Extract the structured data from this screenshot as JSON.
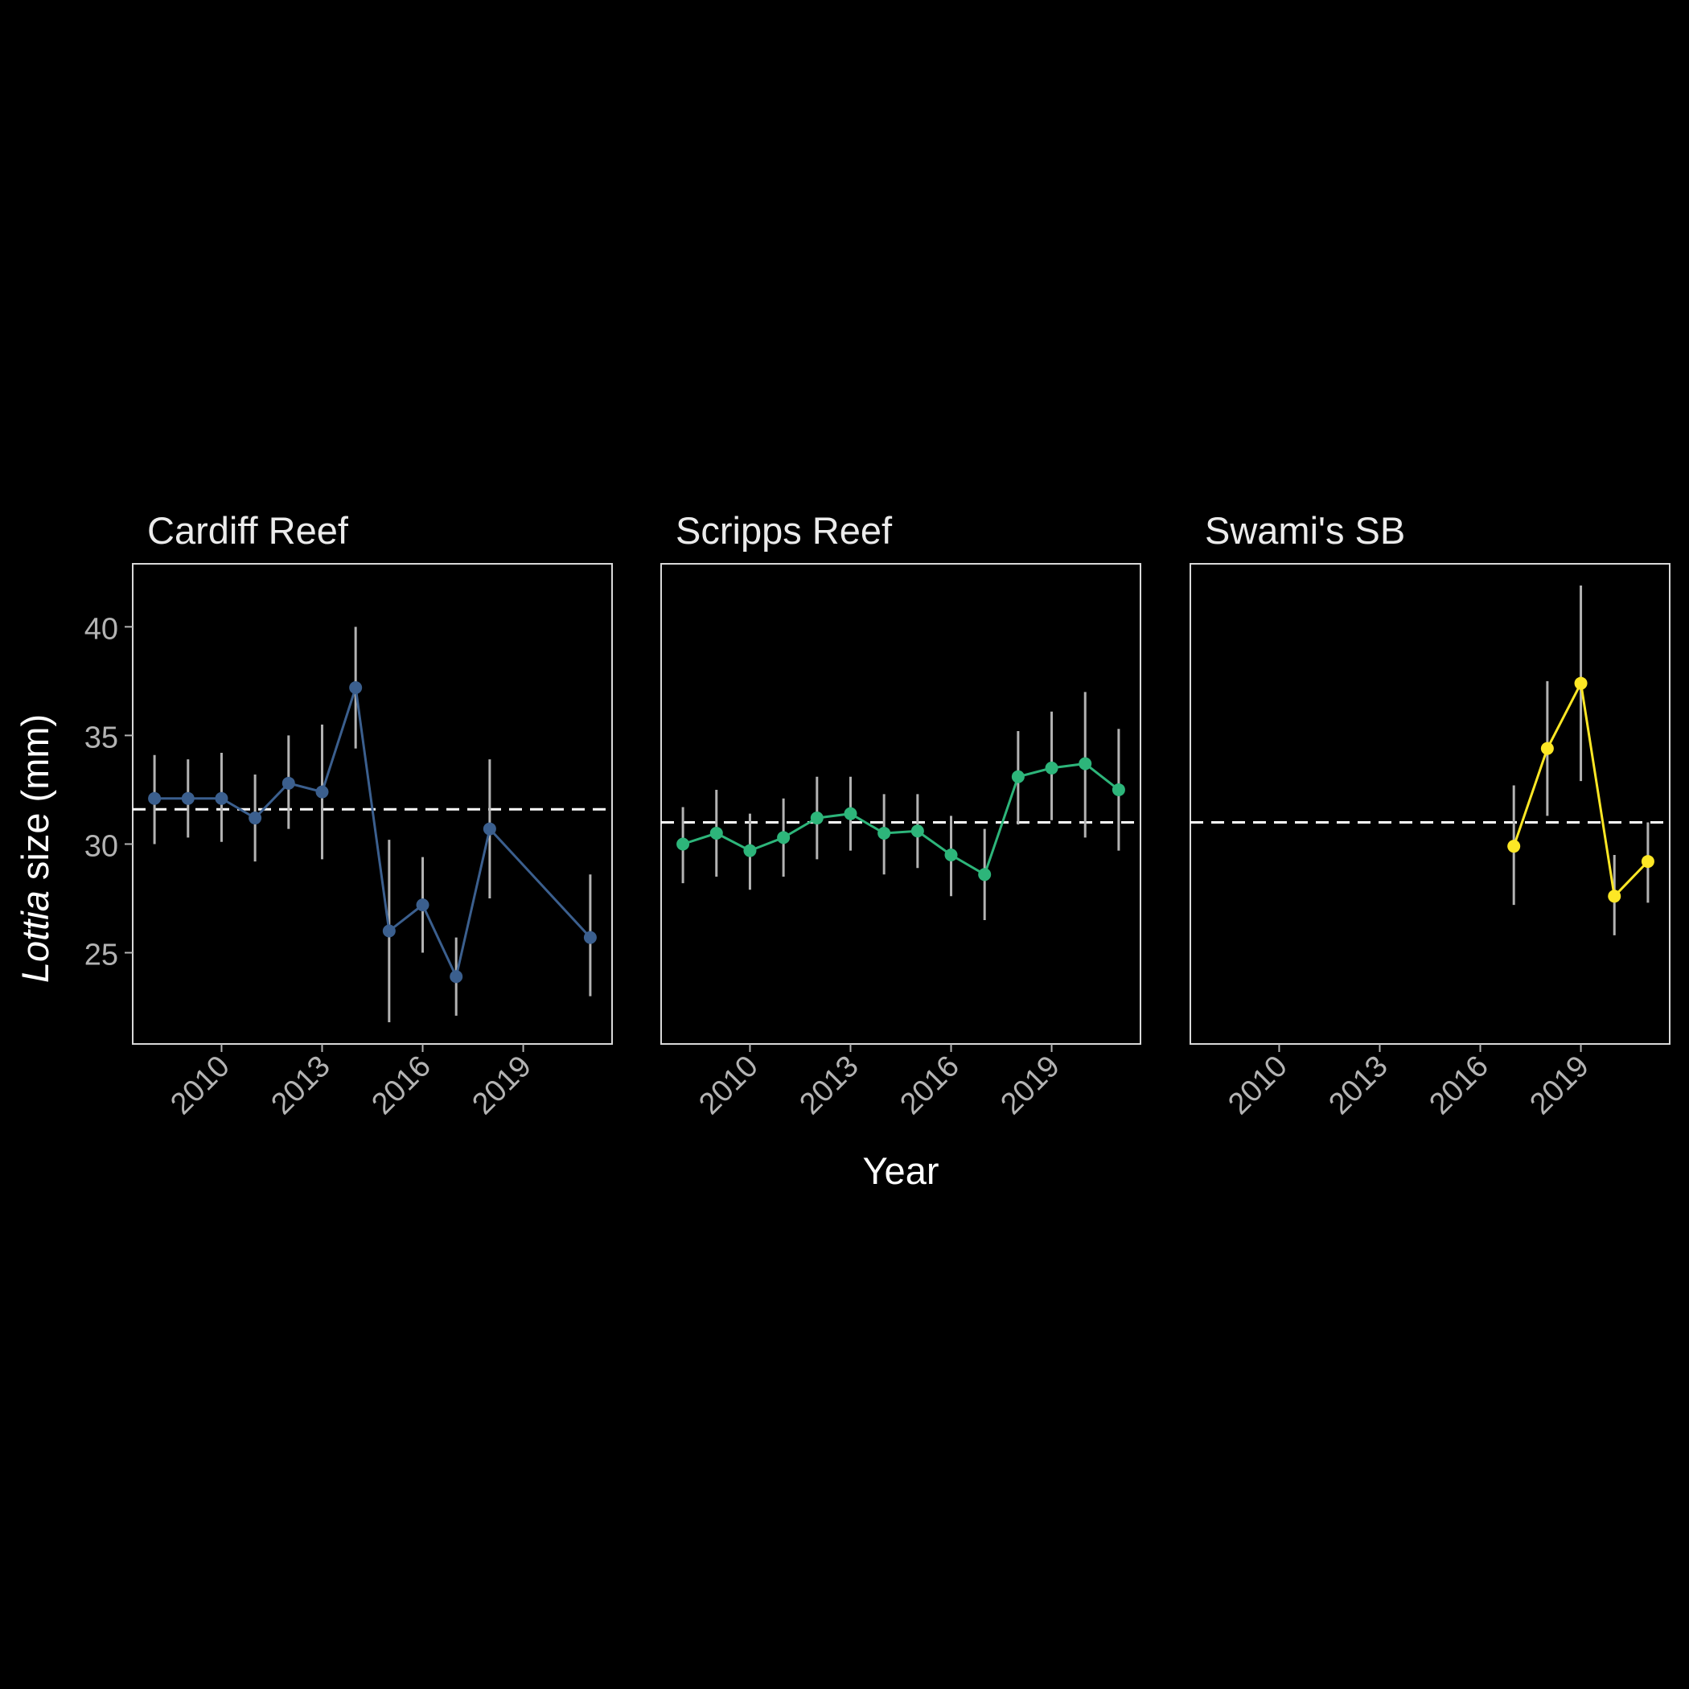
{
  "background": "#000000",
  "colors": {
    "strip_text": "#EBEBEB",
    "axis_text": "#B3B3B3",
    "title_text": "#FFFFFF",
    "panel_border": "#D9D9D9",
    "errorbar": "#B3B3B3",
    "mean_line": "#FFFFFF"
  },
  "chart_data": {
    "type": "line",
    "xlabel": "Year",
    "ylabel_italic": "Lottia",
    "ylabel_rest": " size (mm)",
    "xlim": [
      2007.35,
      2021.65
    ],
    "ylim": [
      20.8,
      42.9
    ],
    "x_ticks": [
      2010,
      2013,
      2016,
      2019
    ],
    "y_ticks": [
      25,
      30,
      35,
      40
    ],
    "grid": false,
    "legend": "none",
    "error_bars": true,
    "panels": [
      {
        "name": "Cardiff Reef",
        "color": "#3B5F8E",
        "mean_line": 31.6,
        "points": [
          {
            "year": 2008,
            "y": 32.1,
            "lo": 30.0,
            "hi": 34.1
          },
          {
            "year": 2009,
            "y": 32.1,
            "lo": 30.3,
            "hi": 33.9
          },
          {
            "year": 2010,
            "y": 32.1,
            "lo": 30.1,
            "hi": 34.2
          },
          {
            "year": 2011,
            "y": 31.2,
            "lo": 29.2,
            "hi": 33.2
          },
          {
            "year": 2012,
            "y": 32.8,
            "lo": 30.7,
            "hi": 35.0
          },
          {
            "year": 2013,
            "y": 32.4,
            "lo": 29.3,
            "hi": 35.5
          },
          {
            "year": 2014,
            "y": 37.2,
            "lo": 34.4,
            "hi": 40.0
          },
          {
            "year": 2015,
            "y": 26.0,
            "lo": 21.8,
            "hi": 30.2
          },
          {
            "year": 2016,
            "y": 27.2,
            "lo": 25.0,
            "hi": 29.4
          },
          {
            "year": 2017,
            "y": 23.9,
            "lo": 22.1,
            "hi": 25.7
          },
          {
            "year": 2018,
            "y": 30.7,
            "lo": 27.5,
            "hi": 33.9
          },
          {
            "year": 2021,
            "y": 25.7,
            "lo": 23.0,
            "hi": 28.6
          }
        ]
      },
      {
        "name": "Scripps Reef",
        "color": "#2DB57A",
        "mean_line": 31.0,
        "points": [
          {
            "year": 2008,
            "y": 30.0,
            "lo": 28.2,
            "hi": 31.7
          },
          {
            "year": 2009,
            "y": 30.5,
            "lo": 28.5,
            "hi": 32.5
          },
          {
            "year": 2010,
            "y": 29.7,
            "lo": 27.9,
            "hi": 31.4
          },
          {
            "year": 2011,
            "y": 30.3,
            "lo": 28.5,
            "hi": 32.1
          },
          {
            "year": 2012,
            "y": 31.2,
            "lo": 29.3,
            "hi": 33.1
          },
          {
            "year": 2013,
            "y": 31.4,
            "lo": 29.7,
            "hi": 33.1
          },
          {
            "year": 2014,
            "y": 30.5,
            "lo": 28.6,
            "hi": 32.3
          },
          {
            "year": 2015,
            "y": 30.6,
            "lo": 28.9,
            "hi": 32.3
          },
          {
            "year": 2016,
            "y": 29.5,
            "lo": 27.6,
            "hi": 31.3
          },
          {
            "year": 2017,
            "y": 28.6,
            "lo": 26.5,
            "hi": 30.7
          },
          {
            "year": 2018,
            "y": 33.1,
            "lo": 30.9,
            "hi": 35.2
          },
          {
            "year": 2019,
            "y": 33.5,
            "lo": 31.1,
            "hi": 36.1
          },
          {
            "year": 2020,
            "y": 33.7,
            "lo": 30.3,
            "hi": 37.0
          },
          {
            "year": 2021,
            "y": 32.5,
            "lo": 29.7,
            "hi": 35.3
          }
        ]
      },
      {
        "name": "Swami's SB",
        "color": "#FDE725",
        "mean_line": 31.0,
        "points": [
          {
            "year": 2017,
            "y": 29.9,
            "lo": 27.2,
            "hi": 32.7
          },
          {
            "year": 2018,
            "y": 34.4,
            "lo": 31.3,
            "hi": 37.5
          },
          {
            "year": 2019,
            "y": 37.4,
            "lo": 32.9,
            "hi": 41.9
          },
          {
            "year": 2020,
            "y": 27.6,
            "lo": 25.8,
            "hi": 29.5
          },
          {
            "year": 2021,
            "y": 29.2,
            "lo": 27.3,
            "hi": 31.0
          }
        ]
      }
    ]
  }
}
